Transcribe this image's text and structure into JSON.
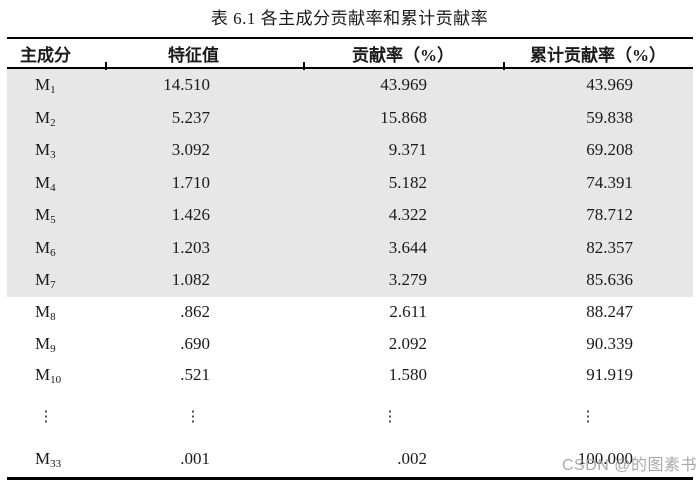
{
  "page": {
    "title": "表 6.1 各主成分贡献率和累计贡献率"
  },
  "table": {
    "columns": [
      "主成分",
      "特征值",
      "贡献率（%）",
      "累计贡献率（%）"
    ],
    "ellipsis_symbol": "⋮",
    "rows": [
      {
        "label_base": "M",
        "label_sub": "1",
        "eigenvalue": "14.510",
        "contribution": "43.969",
        "cumulative": "43.969",
        "shaded": true
      },
      {
        "label_base": "M",
        "label_sub": "2",
        "eigenvalue": "5.237",
        "contribution": "15.868",
        "cumulative": "59.838",
        "shaded": true
      },
      {
        "label_base": "M",
        "label_sub": "3",
        "eigenvalue": "3.092",
        "contribution": "9.371",
        "cumulative": "69.208",
        "shaded": true
      },
      {
        "label_base": "M",
        "label_sub": "4",
        "eigenvalue": "1.710",
        "contribution": "5.182",
        "cumulative": "74.391",
        "shaded": true
      },
      {
        "label_base": "M",
        "label_sub": "5",
        "eigenvalue": "1.426",
        "contribution": "4.322",
        "cumulative": "78.712",
        "shaded": true
      },
      {
        "label_base": "M",
        "label_sub": "6",
        "eigenvalue": "1.203",
        "contribution": "3.644",
        "cumulative": "82.357",
        "shaded": true
      },
      {
        "label_base": "M",
        "label_sub": "7",
        "eigenvalue": "1.082",
        "contribution": "3.279",
        "cumulative": "85.636",
        "shaded": true
      },
      {
        "label_base": "M",
        "label_sub": "8",
        "eigenvalue": ".862",
        "contribution": "2.611",
        "cumulative": "88.247",
        "shaded": false
      },
      {
        "label_base": "M",
        "label_sub": "9",
        "eigenvalue": ".690",
        "contribution": "2.092",
        "cumulative": "90.339",
        "shaded": false
      },
      {
        "label_base": "M",
        "label_sub": "10",
        "eigenvalue": ".521",
        "contribution": "1.580",
        "cumulative": "91.919",
        "shaded": false
      },
      {
        "label_base": "M",
        "label_sub": "33",
        "eigenvalue": ".001",
        "contribution": ".002",
        "cumulative": "100.000",
        "shaded": false,
        "preceded_by_ellipsis": true,
        "last": true
      }
    ]
  },
  "watermark": {
    "text": "CSDN @的图素书",
    "color": "#9a9a9a"
  },
  "colors": {
    "shaded_row_bg": "#e7e7e7",
    "rule": "#000000",
    "text": "#1a1a1a"
  }
}
